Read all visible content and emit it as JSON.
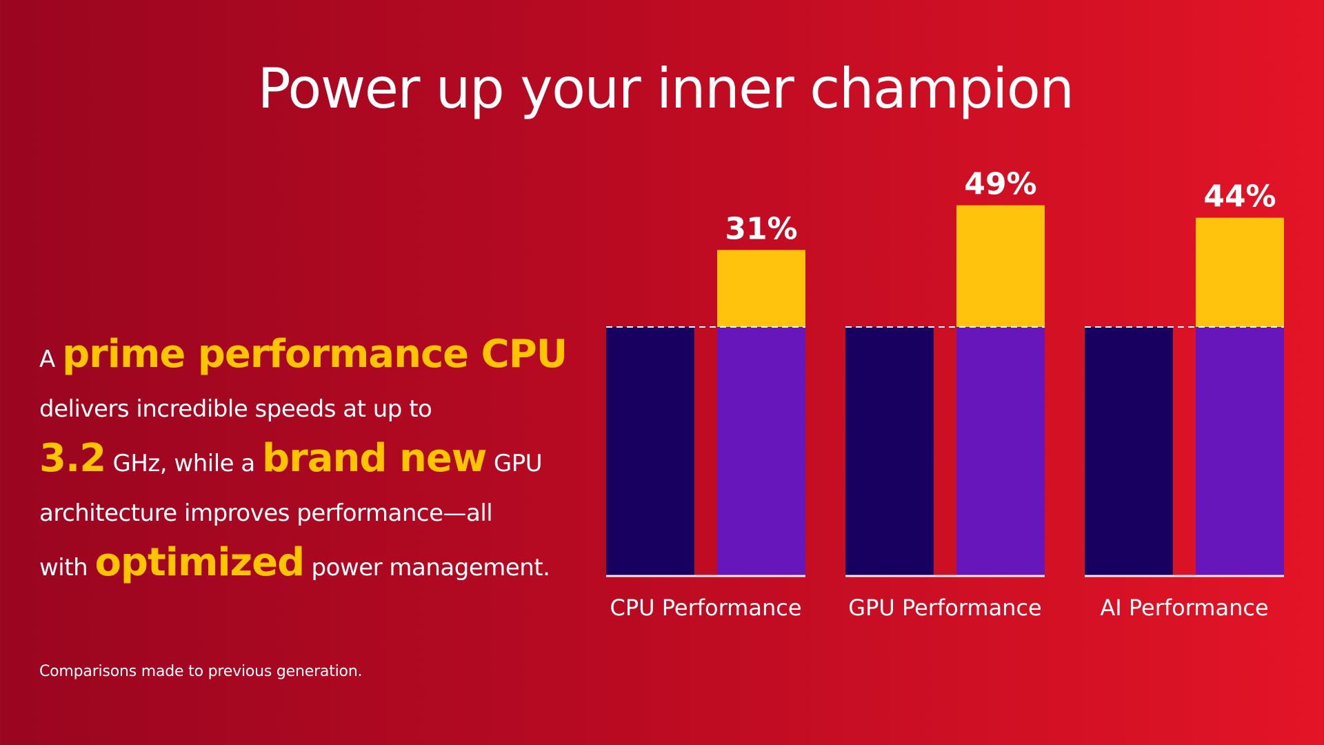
{
  "title": "Power up your inner champion",
  "copy": {
    "l1_a": "A",
    "l1_hl": "prime performance CPU",
    "l2": "delivers incredible speeds at up to",
    "l3_hl1": "3.2",
    "l3_a": "GHz, while a",
    "l3_hl2": "brand new",
    "l3_b": "GPU",
    "l4": "architecture improves performance—all",
    "l5_a": "with",
    "l5_hl": "optimized",
    "l5_b": "power management."
  },
  "footnote": "Comparisons made to previous generation.",
  "colors": {
    "baseline_bar": "#180060",
    "new_bar": "#6616bb",
    "gain_bar": "#ffc30d",
    "highlight_text": "#ffc400"
  },
  "chart_data": {
    "type": "bar",
    "categories": [
      "CPU Performance",
      "GPU Performance",
      "AI Performance"
    ],
    "series": [
      {
        "values": [
          100,
          100,
          100
        ]
      },
      {
        "values": [
          131,
          149,
          144
        ]
      }
    ],
    "data_labels": [
      "31%",
      "49%",
      "44%"
    ],
    "ylim": [
      0,
      160
    ],
    "baseline": 100,
    "grid": false,
    "legend": "none"
  }
}
